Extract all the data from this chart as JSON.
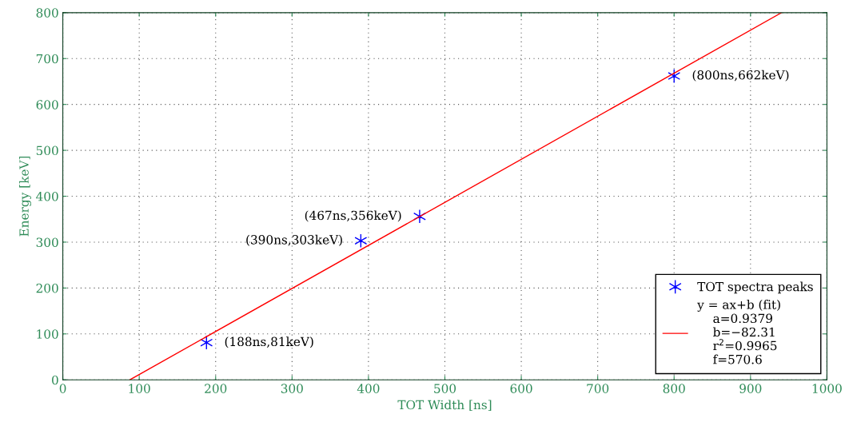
{
  "chart_data": {
    "type": "scatter",
    "xlabel": "TOT Width [ns]",
    "ylabel": "Energy [keV]",
    "xlim": [
      0,
      1000
    ],
    "xticks": [
      0,
      100,
      200,
      300,
      400,
      500,
      600,
      700,
      800,
      900,
      1000
    ],
    "ylim": [
      0,
      800
    ],
    "yticks": [
      0,
      100,
      200,
      300,
      400,
      500,
      600,
      700,
      800
    ],
    "grid": true,
    "legend": "bottom right",
    "series": [
      {
        "name": "TOT spectra peaks",
        "marker": "cross",
        "color": "#0000ff",
        "x": [
          188,
          390,
          467,
          800
        ],
        "values": [
          81,
          303,
          356,
          662
        ]
      },
      {
        "name": "y = ax+b (fit)\n    a=0.9379\n    b=−82.31\n    r$^{2}$=0.9965\n    f=570.6",
        "type": "line",
        "color": "#ff0000",
        "x": [
          87.8,
          940.7
        ],
        "values": [
          0,
          800
        ]
      }
    ],
    "annotations": [
      {
        "text": "(188ns,81keV)",
        "x": 188,
        "y": 81
      },
      {
        "text": "(390ns,303keV)",
        "x": 390,
        "y": 303
      },
      {
        "text": "(467ns,356keV)",
        "x": 467,
        "y": 356
      },
      {
        "text": "(800ns,662keV)",
        "x": 800,
        "y": 662
      }
    ]
  }
}
